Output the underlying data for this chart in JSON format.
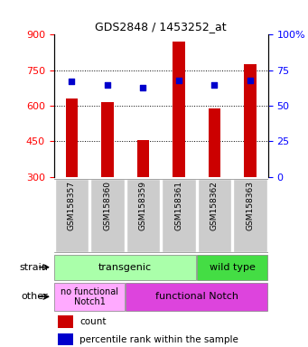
{
  "title": "GDS2848 / 1453252_at",
  "samples": [
    "GSM158357",
    "GSM158360",
    "GSM158359",
    "GSM158361",
    "GSM158362",
    "GSM158363"
  ],
  "count_values": [
    630,
    615,
    455,
    870,
    590,
    775
  ],
  "percentile_values": [
    67,
    65,
    63,
    68,
    65,
    68
  ],
  "ylim_left": [
    300,
    900
  ],
  "ylim_right": [
    0,
    100
  ],
  "yticks_left": [
    300,
    450,
    600,
    750,
    900
  ],
  "yticks_right": [
    0,
    25,
    50,
    75,
    100
  ],
  "bar_color": "#cc0000",
  "dot_color": "#0000cc",
  "strain_transgenic_label": "transgenic",
  "strain_transgenic_color": "#aaffaa",
  "strain_wildtype_label": "wild type",
  "strain_wildtype_color": "#44dd44",
  "other_nofunc_label": "no functional\nNotch1",
  "other_nofunc_color": "#ffaaff",
  "other_func_label": "functional Notch",
  "other_func_color": "#dd44dd",
  "label_strain": "strain",
  "label_other": "other",
  "legend_count": "count",
  "legend_pct": "percentile rank within the sample",
  "bar_width": 0.35,
  "background_color": "#ffffff",
  "tick_area_color": "#cccccc",
  "grid_ticks": [
    450,
    600,
    750
  ]
}
